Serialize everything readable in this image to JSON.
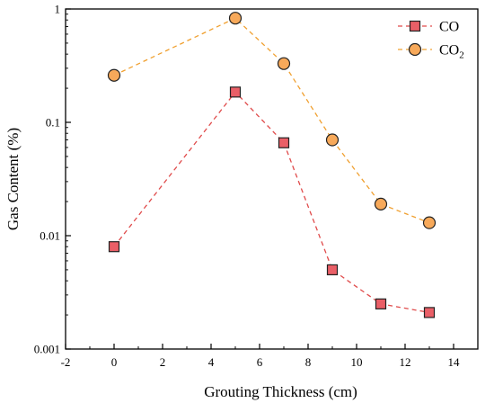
{
  "chart_data": {
    "type": "line",
    "xlabel": "Grouting Thickness (cm)",
    "ylabel": "Gas Content (%)",
    "xlim": [
      -2,
      15
    ],
    "ylim": [
      0.001,
      1
    ],
    "yscale": "log",
    "grid": false,
    "legend_position": "top-right",
    "x_ticks": [
      -2,
      0,
      2,
      4,
      6,
      8,
      10,
      12,
      14
    ],
    "x_tick_labels": [
      "-2",
      "0",
      "2",
      "4",
      "6",
      "8",
      "10",
      "12",
      "14"
    ],
    "y_ticks": [
      0.001,
      0.01,
      0.1,
      1
    ],
    "y_tick_labels": [
      "0.001",
      "0.01",
      "0.1",
      "1"
    ],
    "x": [
      0,
      5,
      7,
      9,
      11,
      13
    ],
    "series": [
      {
        "name": "CO",
        "legend_main": "CO",
        "legend_sub": "",
        "marker": "square",
        "fill": "#ea5f67",
        "line_color": "#e04b4b",
        "values": [
          0.008,
          0.185,
          0.066,
          0.005,
          0.0025,
          0.0021
        ]
      },
      {
        "name": "CO2",
        "legend_main": "CO",
        "legend_sub": "2",
        "marker": "circle",
        "fill": "#f7a95a",
        "line_color": "#f0a030",
        "values": [
          0.26,
          0.83,
          0.33,
          0.07,
          0.019,
          0.013
        ]
      }
    ]
  }
}
